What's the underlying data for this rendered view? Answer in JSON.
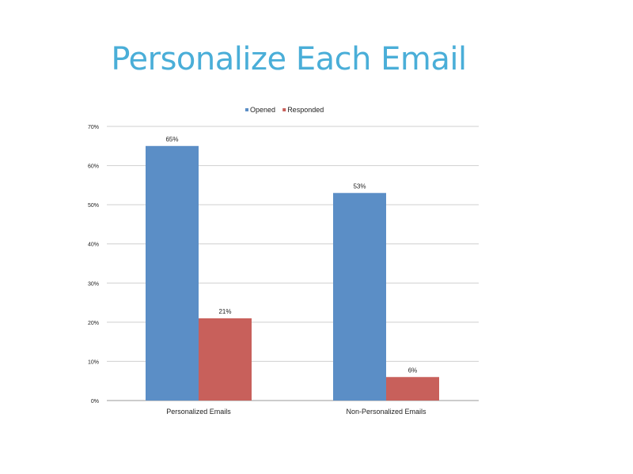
{
  "page_title": "Personalize Each Email",
  "chart_data": {
    "type": "bar",
    "categories": [
      "Personalized Emails",
      "Non-Personalized Emails"
    ],
    "series": [
      {
        "name": "Opened",
        "values": [
          65,
          53
        ],
        "labels": [
          "65%",
          "53%"
        ],
        "color": "#5b8ec6"
      },
      {
        "name": "Responded",
        "values": [
          21,
          6
        ],
        "labels": [
          "21%",
          "6%"
        ],
        "color": "#c8605b"
      }
    ],
    "y_ticks": [
      0,
      10,
      20,
      30,
      40,
      50,
      60,
      70
    ],
    "y_tick_labels": [
      "0%",
      "10%",
      "20%",
      "30%",
      "40%",
      "50%",
      "60%",
      "70%"
    ],
    "ylim": [
      0,
      70
    ],
    "grid": true,
    "legend_position": "top-center"
  }
}
